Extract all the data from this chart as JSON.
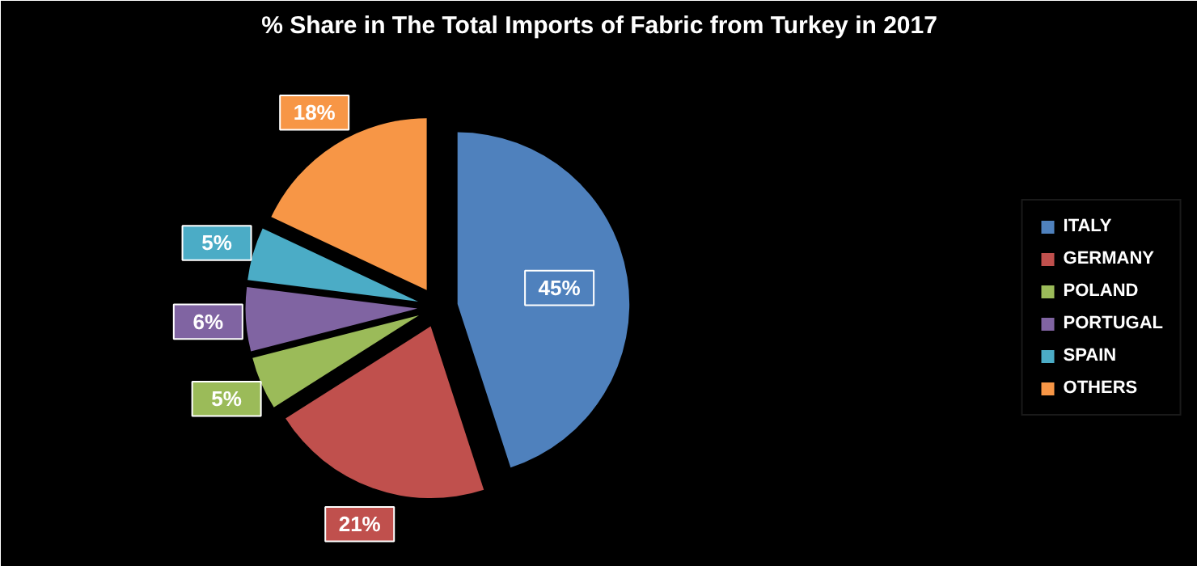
{
  "chart_data": {
    "type": "pie",
    "title": "% Share in The Total Imports of Fabric from Turkey in 2017",
    "categories": [
      "ITALY",
      "GERMANY",
      "POLAND",
      "PORTUGAL",
      "SPAIN",
      "OTHERS"
    ],
    "values": [
      45,
      21,
      5,
      6,
      5,
      18
    ],
    "colors": [
      "#4f81bd",
      "#c0504d",
      "#9bbb59",
      "#8064a2",
      "#4bacc6",
      "#f79646"
    ],
    "value_labels": [
      "45%",
      "21%",
      "5%",
      "6%",
      "5%",
      "18%"
    ],
    "legend": "right"
  }
}
